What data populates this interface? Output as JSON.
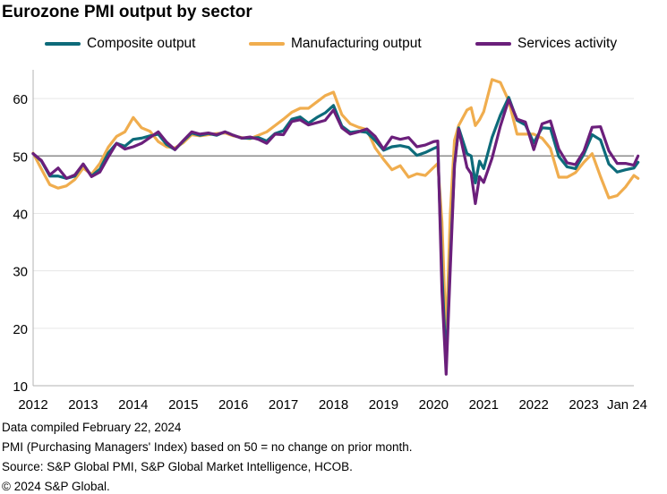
{
  "title": "Eurozone PMI output by sector",
  "footer": {
    "line1": "Data compiled February 22, 2024",
    "line2": "PMI (Purchasing Managers' Index) based on 50 = no change on prior month.",
    "line3": "Source: S&P Global PMI, S&P Global Market Intelligence, HCOB.",
    "line4": "© 2024 S&P Global."
  },
  "colors": {
    "composite": "#0d6b7a",
    "manufacturing": "#f0ad4e",
    "services": "#6b1f7b",
    "reference_line": "#8c8c8c",
    "axis": "#b3b3b3"
  },
  "chart_data": {
    "type": "line",
    "title": "Eurozone PMI output by sector",
    "xlabel": "",
    "ylabel": "",
    "ylim": [
      10,
      65
    ],
    "xlim": [
      "2012-01",
      "2024-01"
    ],
    "y_ticks": [
      10,
      20,
      30,
      40,
      50,
      60
    ],
    "x_tick_labels": [
      {
        "label": "2012",
        "x": "2012-01"
      },
      {
        "label": "2013",
        "x": "2013-01"
      },
      {
        "label": "2014",
        "x": "2014-01"
      },
      {
        "label": "2015",
        "x": "2015-01"
      },
      {
        "label": "2016",
        "x": "2016-01"
      },
      {
        "label": "2017",
        "x": "2017-01"
      },
      {
        "label": "2018",
        "x": "2018-01"
      },
      {
        "label": "2019",
        "x": "2019-01"
      },
      {
        "label": "2020",
        "x": "2020-01"
      },
      {
        "label": "2021",
        "x": "2021-01"
      },
      {
        "label": "2022",
        "x": "2022-01"
      },
      {
        "label": "2023",
        "x": "2023-01"
      },
      {
        "label": "Jan 24",
        "x": "2024-01"
      }
    ],
    "reference_line": 50,
    "grid": "horizontal",
    "legend": "top",
    "series": [
      {
        "name": "Composite output",
        "values": [
          [
            "2012-01",
            50.4
          ],
          [
            "2012-03",
            49.1
          ],
          [
            "2012-05",
            46.5
          ],
          [
            "2012-07",
            46.5
          ],
          [
            "2012-09",
            46.1
          ],
          [
            "2012-11",
            46.5
          ],
          [
            "2013-01",
            48.6
          ],
          [
            "2013-03",
            46.5
          ],
          [
            "2013-05",
            47.7
          ],
          [
            "2013-07",
            50.5
          ],
          [
            "2013-09",
            52.2
          ],
          [
            "2013-11",
            51.7
          ],
          [
            "2014-01",
            52.9
          ],
          [
            "2014-03",
            53.1
          ],
          [
            "2014-05",
            53.5
          ],
          [
            "2014-07",
            53.8
          ],
          [
            "2014-09",
            52.0
          ],
          [
            "2014-11",
            51.1
          ],
          [
            "2015-01",
            52.6
          ],
          [
            "2015-03",
            54.0
          ],
          [
            "2015-05",
            53.6
          ],
          [
            "2015-07",
            53.9
          ],
          [
            "2015-09",
            53.6
          ],
          [
            "2015-11",
            54.2
          ],
          [
            "2016-01",
            53.6
          ],
          [
            "2016-03",
            53.1
          ],
          [
            "2016-05",
            53.1
          ],
          [
            "2016-07",
            53.2
          ],
          [
            "2016-09",
            52.6
          ],
          [
            "2016-11",
            53.9
          ],
          [
            "2017-01",
            54.4
          ],
          [
            "2017-03",
            56.4
          ],
          [
            "2017-05",
            56.8
          ],
          [
            "2017-07",
            55.7
          ],
          [
            "2017-09",
            56.7
          ],
          [
            "2017-11",
            57.5
          ],
          [
            "2018-01",
            58.8
          ],
          [
            "2018-03",
            55.2
          ],
          [
            "2018-05",
            54.1
          ],
          [
            "2018-07",
            54.3
          ],
          [
            "2018-09",
            54.1
          ],
          [
            "2018-11",
            52.7
          ],
          [
            "2019-01",
            51.0
          ],
          [
            "2019-03",
            51.6
          ],
          [
            "2019-05",
            51.8
          ],
          [
            "2019-07",
            51.5
          ],
          [
            "2019-09",
            50.1
          ],
          [
            "2019-11",
            50.6
          ],
          [
            "2020-01",
            51.3
          ],
          [
            "2020-02",
            51.6
          ],
          [
            "2020-03",
            29.7
          ],
          [
            "2020-04",
            13.6
          ],
          [
            "2020-05",
            31.9
          ],
          [
            "2020-06",
            48.5
          ],
          [
            "2020-07",
            54.9
          ],
          [
            "2020-09",
            50.4
          ],
          [
            "2020-10",
            50.0
          ],
          [
            "2020-11",
            45.3
          ],
          [
            "2020-12",
            49.1
          ],
          [
            "2021-01",
            47.8
          ],
          [
            "2021-03",
            53.2
          ],
          [
            "2021-05",
            57.1
          ],
          [
            "2021-07",
            60.2
          ],
          [
            "2021-09",
            56.2
          ],
          [
            "2021-11",
            55.4
          ],
          [
            "2022-01",
            52.3
          ],
          [
            "2022-03",
            54.9
          ],
          [
            "2022-05",
            54.8
          ],
          [
            "2022-07",
            49.9
          ],
          [
            "2022-09",
            48.1
          ],
          [
            "2022-11",
            47.8
          ],
          [
            "2023-01",
            50.3
          ],
          [
            "2023-03",
            53.7
          ],
          [
            "2023-05",
            52.8
          ],
          [
            "2023-07",
            48.6
          ],
          [
            "2023-09",
            47.2
          ],
          [
            "2023-11",
            47.6
          ],
          [
            "2024-01",
            47.9
          ],
          [
            "2024-02",
            48.9
          ]
        ]
      },
      {
        "name": "Manufacturing output",
        "values": [
          [
            "2012-01",
            50.5
          ],
          [
            "2012-03",
            47.7
          ],
          [
            "2012-05",
            45.0
          ],
          [
            "2012-07",
            44.4
          ],
          [
            "2012-09",
            44.8
          ],
          [
            "2012-11",
            45.9
          ],
          [
            "2013-01",
            47.9
          ],
          [
            "2013-03",
            46.8
          ],
          [
            "2013-05",
            48.7
          ],
          [
            "2013-07",
            51.5
          ],
          [
            "2013-09",
            53.4
          ],
          [
            "2013-11",
            54.2
          ],
          [
            "2014-01",
            56.7
          ],
          [
            "2014-03",
            54.9
          ],
          [
            "2014-05",
            54.3
          ],
          [
            "2014-07",
            52.5
          ],
          [
            "2014-09",
            51.6
          ],
          [
            "2014-11",
            51.4
          ],
          [
            "2015-01",
            52.3
          ],
          [
            "2015-03",
            53.7
          ],
          [
            "2015-05",
            53.5
          ],
          [
            "2015-07",
            53.7
          ],
          [
            "2015-09",
            53.9
          ],
          [
            "2015-11",
            54.0
          ],
          [
            "2016-01",
            53.5
          ],
          [
            "2016-03",
            53.2
          ],
          [
            "2016-05",
            53.0
          ],
          [
            "2016-07",
            53.6
          ],
          [
            "2016-09",
            54.2
          ],
          [
            "2016-11",
            55.3
          ],
          [
            "2017-01",
            56.4
          ],
          [
            "2017-03",
            57.6
          ],
          [
            "2017-05",
            58.3
          ],
          [
            "2017-07",
            58.3
          ],
          [
            "2017-09",
            59.4
          ],
          [
            "2017-11",
            60.5
          ],
          [
            "2018-01",
            61.1
          ],
          [
            "2018-03",
            57.2
          ],
          [
            "2018-05",
            55.6
          ],
          [
            "2018-07",
            55.0
          ],
          [
            "2018-09",
            54.6
          ],
          [
            "2018-11",
            51.4
          ],
          [
            "2019-01",
            49.4
          ],
          [
            "2019-03",
            47.6
          ],
          [
            "2019-05",
            48.3
          ],
          [
            "2019-07",
            46.3
          ],
          [
            "2019-09",
            46.9
          ],
          [
            "2019-11",
            46.6
          ],
          [
            "2020-01",
            48.0
          ],
          [
            "2020-02",
            48.7
          ],
          [
            "2020-03",
            38.5
          ],
          [
            "2020-04",
            18.1
          ],
          [
            "2020-05",
            40.0
          ],
          [
            "2020-06",
            52.7
          ],
          [
            "2020-07",
            55.3
          ],
          [
            "2020-09",
            58.0
          ],
          [
            "2020-10",
            58.4
          ],
          [
            "2020-11",
            55.3
          ],
          [
            "2020-12",
            56.3
          ],
          [
            "2021-01",
            57.7
          ],
          [
            "2021-03",
            63.3
          ],
          [
            "2021-05",
            62.8
          ],
          [
            "2021-07",
            59.6
          ],
          [
            "2021-09",
            53.8
          ],
          [
            "2021-11",
            53.8
          ],
          [
            "2022-01",
            53.8
          ],
          [
            "2022-03",
            53.1
          ],
          [
            "2022-05",
            51.3
          ],
          [
            "2022-07",
            46.3
          ],
          [
            "2022-09",
            46.3
          ],
          [
            "2022-11",
            47.1
          ],
          [
            "2023-01",
            48.9
          ],
          [
            "2023-03",
            50.4
          ],
          [
            "2023-05",
            46.4
          ],
          [
            "2023-07",
            42.7
          ],
          [
            "2023-09",
            43.1
          ],
          [
            "2023-11",
            44.6
          ],
          [
            "2024-01",
            46.6
          ],
          [
            "2024-02",
            46.1
          ]
        ]
      },
      {
        "name": "Services activity",
        "values": [
          [
            "2012-01",
            50.4
          ],
          [
            "2012-03",
            49.2
          ],
          [
            "2012-05",
            46.7
          ],
          [
            "2012-07",
            47.9
          ],
          [
            "2012-09",
            46.1
          ],
          [
            "2012-11",
            46.7
          ],
          [
            "2013-01",
            48.6
          ],
          [
            "2013-03",
            46.4
          ],
          [
            "2013-05",
            47.2
          ],
          [
            "2013-07",
            49.8
          ],
          [
            "2013-09",
            52.2
          ],
          [
            "2013-11",
            51.2
          ],
          [
            "2014-01",
            51.6
          ],
          [
            "2014-03",
            52.2
          ],
          [
            "2014-05",
            53.2
          ],
          [
            "2014-07",
            54.2
          ],
          [
            "2014-09",
            52.4
          ],
          [
            "2014-11",
            51.1
          ],
          [
            "2015-01",
            52.7
          ],
          [
            "2015-03",
            54.2
          ],
          [
            "2015-05",
            53.8
          ],
          [
            "2015-07",
            54.0
          ],
          [
            "2015-09",
            53.7
          ],
          [
            "2015-11",
            54.2
          ],
          [
            "2016-01",
            53.6
          ],
          [
            "2016-03",
            53.1
          ],
          [
            "2016-05",
            53.3
          ],
          [
            "2016-07",
            52.9
          ],
          [
            "2016-09",
            52.2
          ],
          [
            "2016-11",
            53.8
          ],
          [
            "2017-01",
            53.7
          ],
          [
            "2017-03",
            56.0
          ],
          [
            "2017-05",
            56.3
          ],
          [
            "2017-07",
            55.4
          ],
          [
            "2017-09",
            55.8
          ],
          [
            "2017-11",
            56.2
          ],
          [
            "2018-01",
            58.0
          ],
          [
            "2018-03",
            54.9
          ],
          [
            "2018-05",
            53.8
          ],
          [
            "2018-07",
            54.2
          ],
          [
            "2018-09",
            54.7
          ],
          [
            "2018-11",
            53.4
          ],
          [
            "2019-01",
            51.2
          ],
          [
            "2019-03",
            53.3
          ],
          [
            "2019-05",
            52.9
          ],
          [
            "2019-07",
            53.2
          ],
          [
            "2019-09",
            51.6
          ],
          [
            "2019-11",
            51.9
          ],
          [
            "2020-01",
            52.5
          ],
          [
            "2020-02",
            52.6
          ],
          [
            "2020-03",
            26.4
          ],
          [
            "2020-04",
            12.0
          ],
          [
            "2020-05",
            30.5
          ],
          [
            "2020-06",
            48.3
          ],
          [
            "2020-07",
            54.7
          ],
          [
            "2020-09",
            48.0
          ],
          [
            "2020-10",
            46.9
          ],
          [
            "2020-11",
            41.7
          ],
          [
            "2020-12",
            46.4
          ],
          [
            "2021-01",
            45.4
          ],
          [
            "2021-03",
            49.6
          ],
          [
            "2021-05",
            55.2
          ],
          [
            "2021-07",
            59.8
          ],
          [
            "2021-09",
            56.4
          ],
          [
            "2021-11",
            55.9
          ],
          [
            "2022-01",
            51.1
          ],
          [
            "2022-03",
            55.6
          ],
          [
            "2022-05",
            56.1
          ],
          [
            "2022-07",
            51.2
          ],
          [
            "2022-09",
            48.8
          ],
          [
            "2022-11",
            48.5
          ],
          [
            "2023-01",
            50.8
          ],
          [
            "2023-03",
            55.0
          ],
          [
            "2023-05",
            55.1
          ],
          [
            "2023-07",
            50.9
          ],
          [
            "2023-09",
            48.7
          ],
          [
            "2023-11",
            48.7
          ],
          [
            "2024-01",
            48.4
          ],
          [
            "2024-02",
            50.0
          ]
        ]
      }
    ]
  }
}
